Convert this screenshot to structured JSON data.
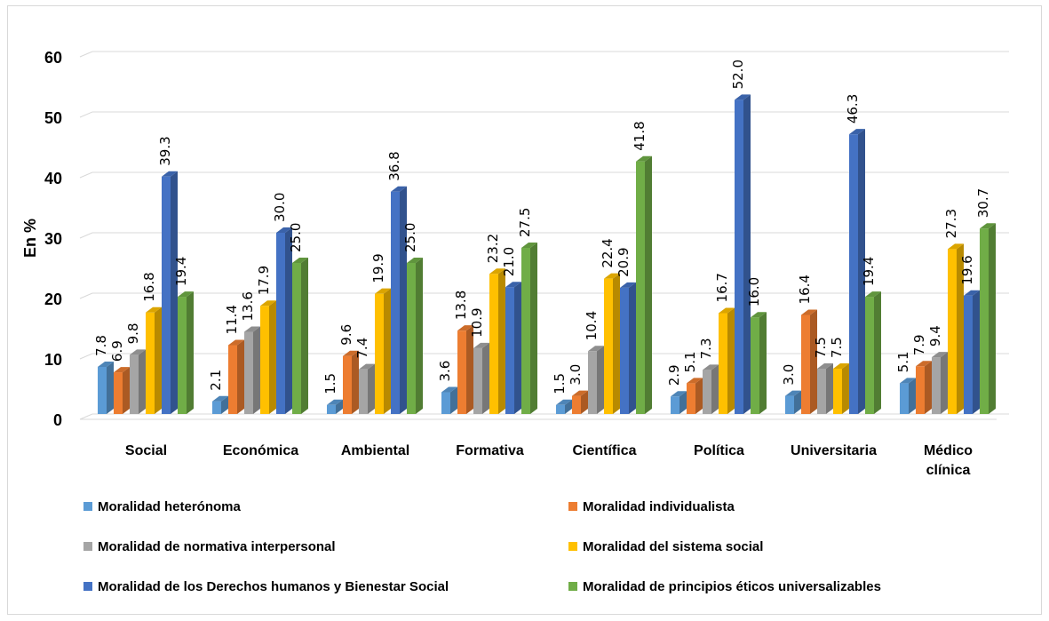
{
  "chart_data": {
    "type": "bar",
    "ylabel": "En %",
    "ylim": [
      0,
      60
    ],
    "yticks": [
      0,
      10,
      20,
      30,
      40,
      50,
      60
    ],
    "grid": true,
    "legend_position": "bottom",
    "categories": [
      [
        "Social"
      ],
      [
        "Económica"
      ],
      [
        "Ambiental"
      ],
      [
        "Formativa"
      ],
      [
        "Científica"
      ],
      [
        "Política"
      ],
      [
        "Universitaria"
      ],
      [
        "Médico",
        "clínica"
      ]
    ],
    "series": [
      {
        "name": "Moralidad heterónoma",
        "color": "#5b9bd5",
        "values": [
          7.8,
          2.1,
          1.5,
          3.6,
          1.5,
          2.9,
          3.0,
          5.1
        ],
        "labels": [
          "7.8",
          "2.1",
          "1.5",
          "3.6",
          "1.5",
          "2.9",
          "3.0",
          "5.1"
        ]
      },
      {
        "name": "Moralidad individualista",
        "color": "#ed7d31",
        "values": [
          6.9,
          11.4,
          9.6,
          13.8,
          3.0,
          5.1,
          16.4,
          7.9
        ],
        "labels": [
          "6.9",
          "11.4",
          "9.6",
          "13.8",
          "3.0",
          "5.1",
          "16.4",
          "7.9"
        ]
      },
      {
        "name": "Moralidad de normativa  interpersonal",
        "color": "#a5a5a5",
        "values": [
          9.8,
          13.6,
          7.4,
          10.9,
          10.4,
          7.3,
          7.5,
          9.4
        ],
        "labels": [
          "9.8",
          "13.6",
          "7.4",
          "10.9",
          "10.4",
          "7.3",
          "7.5",
          "9.4"
        ]
      },
      {
        "name": "Moralidad del sistema social",
        "color": "#ffc000",
        "values": [
          16.8,
          17.9,
          19.9,
          23.2,
          22.4,
          16.7,
          7.5,
          27.3
        ],
        "labels": [
          "16.8",
          "17.9",
          "19.9",
          "23.2",
          "22.4",
          "16.7",
          "7.5",
          "27.3"
        ]
      },
      {
        "name": "Moralidad de los Derechos humanos y Bienestar Social",
        "color": "#4472c4",
        "values": [
          39.3,
          30.0,
          36.8,
          21.0,
          20.9,
          52.0,
          46.3,
          19.6
        ],
        "labels": [
          "39.3",
          "30.0",
          "36.8",
          "21.0",
          "20.9",
          "52.0",
          "46.3",
          "19.6"
        ]
      },
      {
        "name": "Moralidad de principios éticos universalizables",
        "color": "#70ad47",
        "values": [
          19.4,
          25.0,
          25.0,
          27.5,
          41.8,
          16.0,
          19.4,
          30.7
        ],
        "labels": [
          "19.4",
          "25.0",
          "25.0",
          "27.5",
          "41.8",
          "16.0",
          "19.4",
          "30.7"
        ]
      }
    ]
  }
}
